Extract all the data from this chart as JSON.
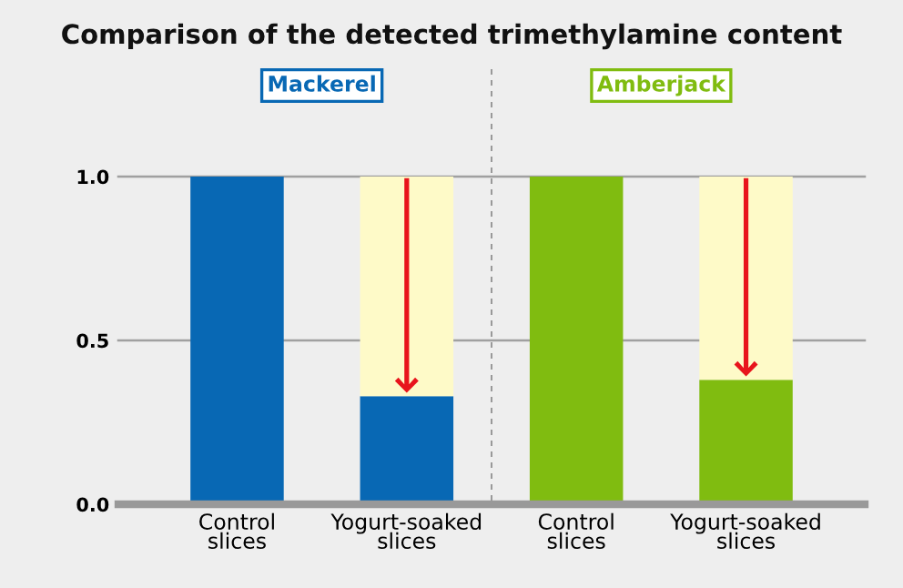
{
  "chart_data": {
    "type": "bar",
    "title": "Comparison of the detected trimethylamine content",
    "categories": [
      "Control\nslices",
      "Yogurt-soaked\nslices",
      "Control\nslices",
      "Yogurt-soaked\nslices"
    ],
    "stacked": true,
    "series": [
      {
        "colors": [
          "#0868b4",
          "#0868b4",
          "#80bc10",
          "#80bc10"
        ],
        "values": [
          1.0,
          0.33,
          1.0,
          0.38
        ]
      },
      {
        "color": "#fefac8",
        "values": [
          null,
          0.67,
          null,
          0.62
        ]
      }
    ],
    "annotations": [
      "Mackerel",
      "Amberjack"
    ],
    "ylim": [
      0,
      1.0
    ],
    "yticks": [
      {
        "value": 0,
        "label": "0.0"
      },
      {
        "value": 0.5,
        "label": "0.5"
      },
      {
        "value": 1.0,
        "label": "1.0"
      }
    ],
    "grid": "y",
    "legend": false
  }
}
